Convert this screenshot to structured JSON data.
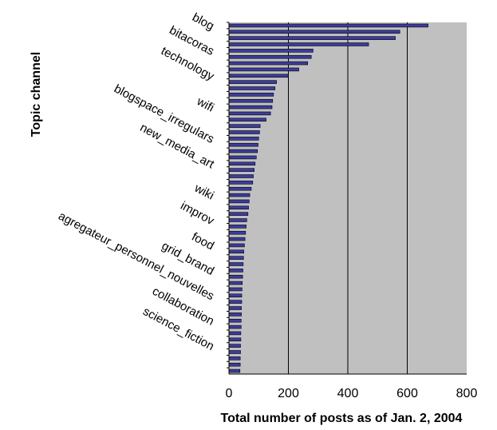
{
  "chart_data": {
    "type": "bar",
    "orientation": "horizontal",
    "title": "",
    "xlabel": "Total number of posts as of Jan. 2, 2004",
    "ylabel": "Topic channel",
    "xlim": [
      0,
      800
    ],
    "xticks": [
      "0",
      "200",
      "400",
      "600",
      "800"
    ],
    "grid": "vertical",
    "plot_background": "#c0c0c0",
    "bar_color": "#3c3c9c",
    "categories": [
      "blog",
      "",
      "",
      "",
      "bitacoras",
      "",
      "",
      "",
      "technology",
      "",
      "",
      "",
      "",
      "wifi",
      "",
      "",
      "",
      "",
      "blogspace_irregulars",
      "",
      "",
      "",
      "new_media_art",
      "",
      "",
      "",
      "",
      "wiki",
      "",
      "",
      "",
      "improv",
      "",
      "",
      "",
      "food",
      "",
      "",
      "",
      "grid_brand",
      "",
      "",
      "",
      "agregateur_personnel_nouvelles",
      "",
      "",
      "",
      "collaboration",
      "",
      "",
      "",
      "science_fiction",
      "",
      "",
      "",
      ""
    ],
    "values": [
      670,
      575,
      560,
      470,
      283,
      277,
      265,
      235,
      200,
      160,
      155,
      150,
      147,
      145,
      140,
      125,
      105,
      103,
      100,
      98,
      96,
      92,
      88,
      85,
      82,
      80,
      75,
      70,
      68,
      66,
      64,
      60,
      58,
      56,
      54,
      52,
      50,
      49,
      48,
      47,
      46,
      45,
      44,
      43,
      43,
      42,
      42,
      41,
      41,
      40,
      40,
      39,
      39,
      38,
      38,
      37
    ]
  }
}
